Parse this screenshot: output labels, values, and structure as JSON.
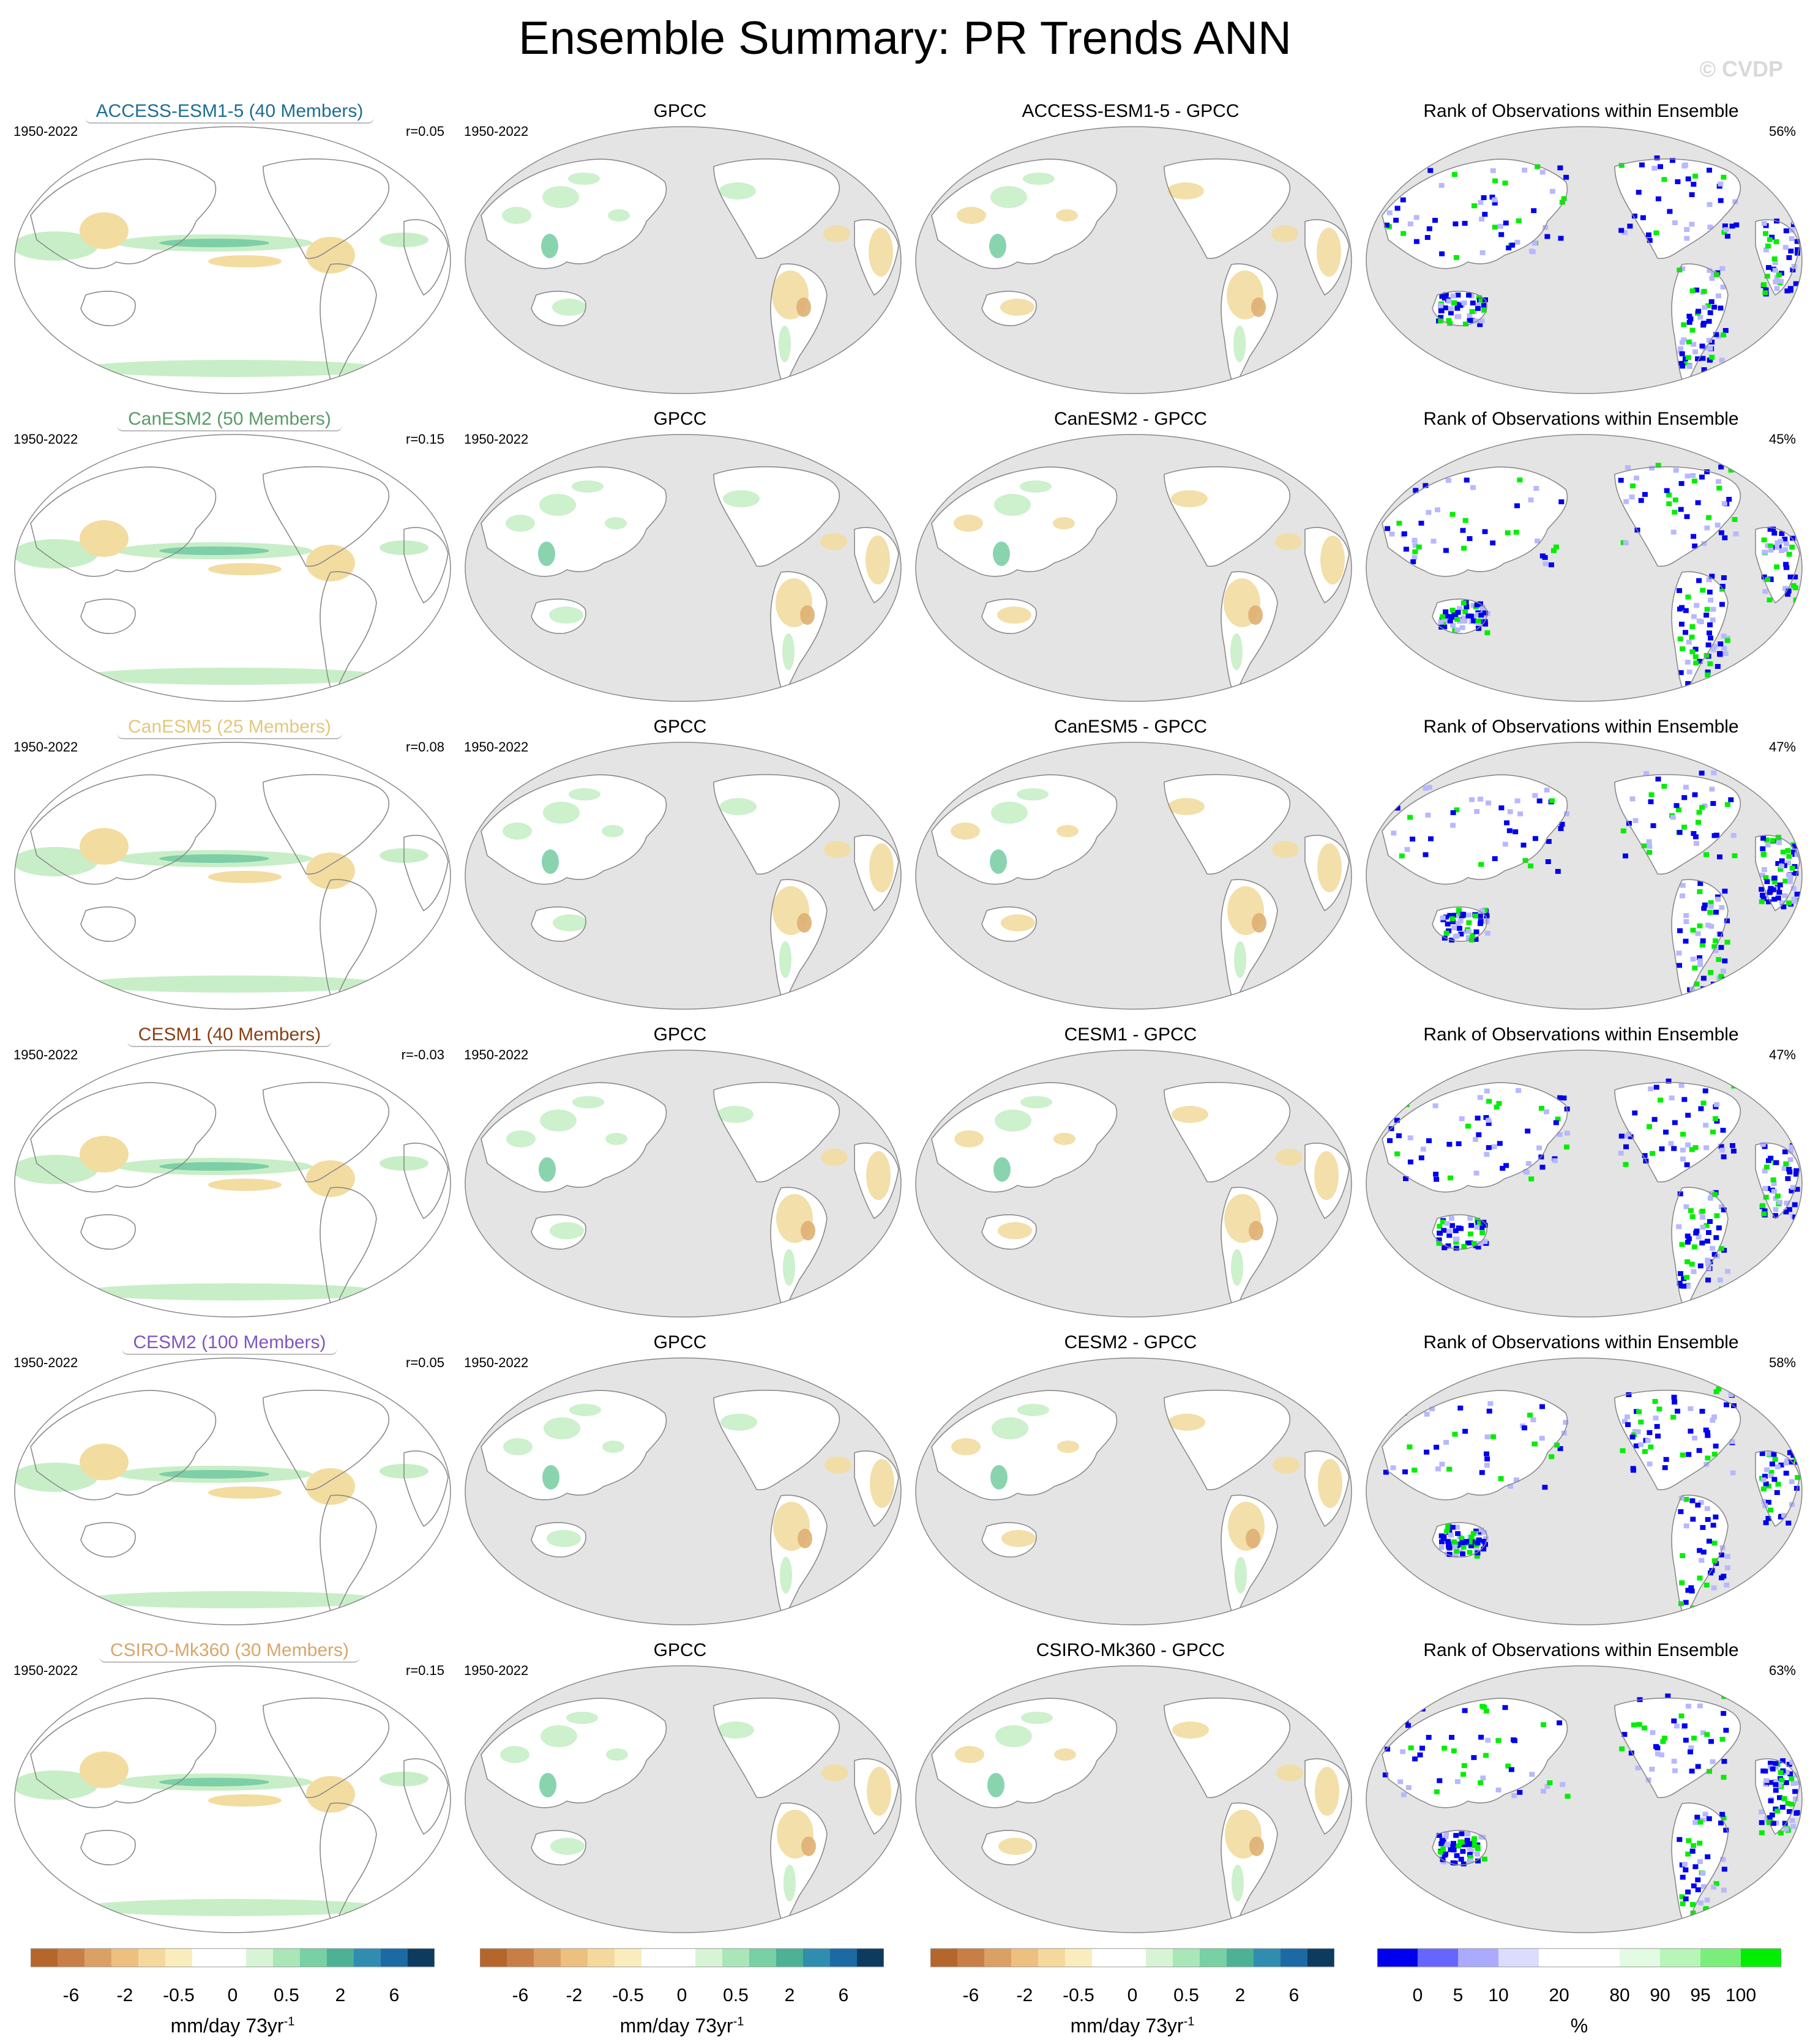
{
  "header": {
    "title": "Ensemble Summary: PR Trends ANN",
    "watermark": "© CVDP"
  },
  "rows": [
    {
      "model": "ACCESS-ESM1-5 (40 Members)",
      "model_color": "#1c6e93",
      "period": "1950-2022",
      "pattern_corr": "r=0.05",
      "obs_title": "GPCC",
      "obs_period": "1950-2022",
      "diff_title": "ACCESS-ESM1-5 - GPCC",
      "rank_title": "Rank of Observations within Ensemble",
      "rank_percent": "56%"
    },
    {
      "model": "CanESM2 (50 Members)",
      "model_color": "#5a9a6a",
      "period": "1950-2022",
      "pattern_corr": "r=0.15",
      "obs_title": "GPCC",
      "obs_period": "1950-2022",
      "diff_title": "CanESM2 - GPCC",
      "rank_title": "Rank of Observations within Ensemble",
      "rank_percent": "45%"
    },
    {
      "model": "CanESM5 (25 Members)",
      "model_color": "#e3c77a",
      "period": "1950-2022",
      "pattern_corr": "r=0.08",
      "obs_title": "GPCC",
      "obs_period": "1950-2022",
      "diff_title": "CanESM5 - GPCC",
      "rank_title": "Rank of Observations within Ensemble",
      "rank_percent": "47%"
    },
    {
      "model": "CESM1 (40 Members)",
      "model_color": "#8a3f14",
      "period": "1950-2022",
      "pattern_corr": "r=-0.03",
      "obs_title": "GPCC",
      "obs_period": "1950-2022",
      "diff_title": "CESM1 - GPCC",
      "rank_title": "Rank of Observations within Ensemble",
      "rank_percent": "47%"
    },
    {
      "model": "CESM2 (100 Members)",
      "model_color": "#7f56c2",
      "period": "1950-2022",
      "pattern_corr": "r=0.05",
      "obs_title": "GPCC",
      "obs_period": "1950-2022",
      "diff_title": "CESM2 - GPCC",
      "rank_title": "Rank of Observations within Ensemble",
      "rank_percent": "58%"
    },
    {
      "model": "CSIRO-Mk360 (30 Members)",
      "model_color": "#d9a66a",
      "period": "1950-2022",
      "pattern_corr": "r=0.15",
      "obs_title": "GPCC",
      "obs_period": "1950-2022",
      "diff_title": "CSIRO-Mk360 - GPCC",
      "rank_title": "Rank of Observations within Ensemble",
      "rank_percent": "63%"
    }
  ],
  "colorbars": {
    "trend": {
      "label": "mm/day 73yr",
      "label_sup": "-1",
      "colors": [
        "#b5672b",
        "#c87f45",
        "#dba164",
        "#edc07f",
        "#f5d99c",
        "#faedbd",
        "#ffffff",
        "#ffffff",
        "#d7f5d5",
        "#a9e6b8",
        "#78d0a5",
        "#4bb296",
        "#2f8db0",
        "#1c6aa3",
        "#0c3b5e"
      ],
      "ticks": [
        "-6",
        "-2",
        "-0.5",
        "0",
        "0.5",
        "2",
        "6"
      ]
    },
    "rank": {
      "label": "%",
      "colors": [
        "#0000ee",
        "#6666ff",
        "#aaaaff",
        "#dcdcff",
        "#ffffff",
        "#ffffff",
        "#e2fbe2",
        "#b8f5b8",
        "#7aee7a",
        "#00ee00"
      ],
      "ticks": [
        "0",
        "5",
        "10",
        "20",
        "80",
        "90",
        "95",
        "100"
      ]
    }
  },
  "map_colors": {
    "ocean_obs": "#e4e4e4",
    "land_obs": "#ffffff",
    "coast": "#8a8a8a",
    "dry": "#f2dca0",
    "dry_strong": "#dfb073",
    "wet": "#c8eec8",
    "wet_strong": "#7ccfa6",
    "wet_deep": "#3ea58c",
    "rank_low": "#0000ee",
    "rank_high": "#00ee00",
    "rank_mid": "#b8b8ff"
  }
}
